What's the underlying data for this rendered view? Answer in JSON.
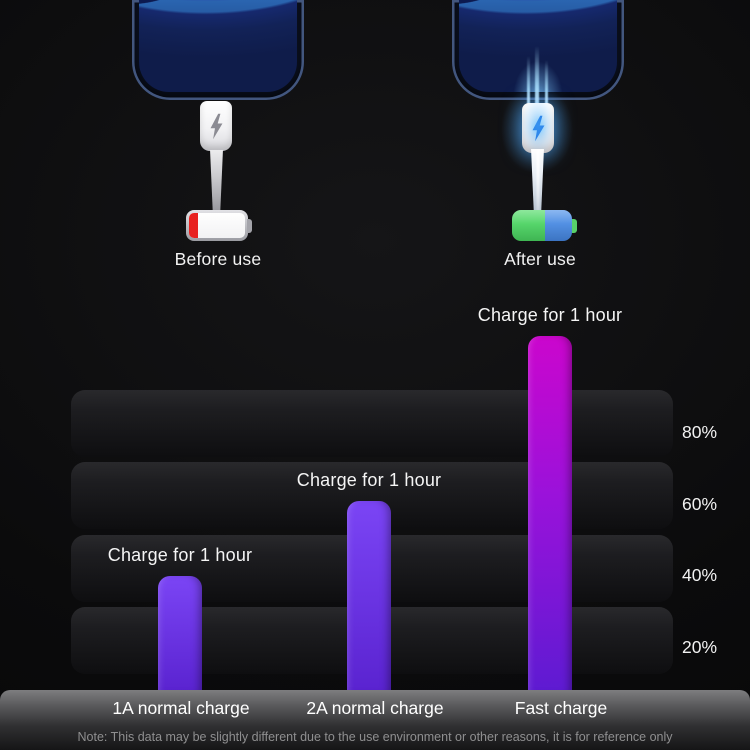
{
  "phones": {
    "before": {
      "caption": "Before use",
      "battery_state": "low",
      "battery_level_color": "#e8211f"
    },
    "after": {
      "caption": "After use",
      "battery_state": "charged",
      "battery_green": "#55d66a",
      "battery_blue": "#4e8ee4"
    }
  },
  "chart_data": {
    "type": "bar",
    "title": "",
    "xlabel": "",
    "ylabel": "",
    "unit": "%",
    "categories": [
      "1A normal charge",
      "2A normal charge",
      "Fast charge"
    ],
    "values": [
      40,
      61,
      107
    ],
    "annotations": [
      "Charge for 1 hour",
      "Charge for 1 hour",
      "Charge for 1 hour"
    ],
    "y_ticks": [
      80,
      60,
      40,
      20
    ],
    "y_tick_labels": [
      "80%",
      "60%",
      "40%",
      "20%"
    ],
    "ylim": [
      0,
      110
    ],
    "grid": "horizontal-bands",
    "legend": "none",
    "bar_colors": [
      {
        "top": "#7b45f5",
        "bottom": "#5a23d0"
      },
      {
        "top": "#7b45f5",
        "bottom": "#5a23d0"
      },
      {
        "top": "#cb06cd",
        "mid": "#9a12da",
        "bottom": "#5e1bd2"
      }
    ]
  },
  "footer": {
    "note": "Note: This data may be slightly different due to the use environment or other reasons, it is for reference only"
  },
  "colors": {
    "background": "#0b0b0c",
    "accent_purple": "#6e35e8",
    "accent_magenta": "#cb06cd",
    "axis_bar_gray": "#5a5a5c"
  }
}
